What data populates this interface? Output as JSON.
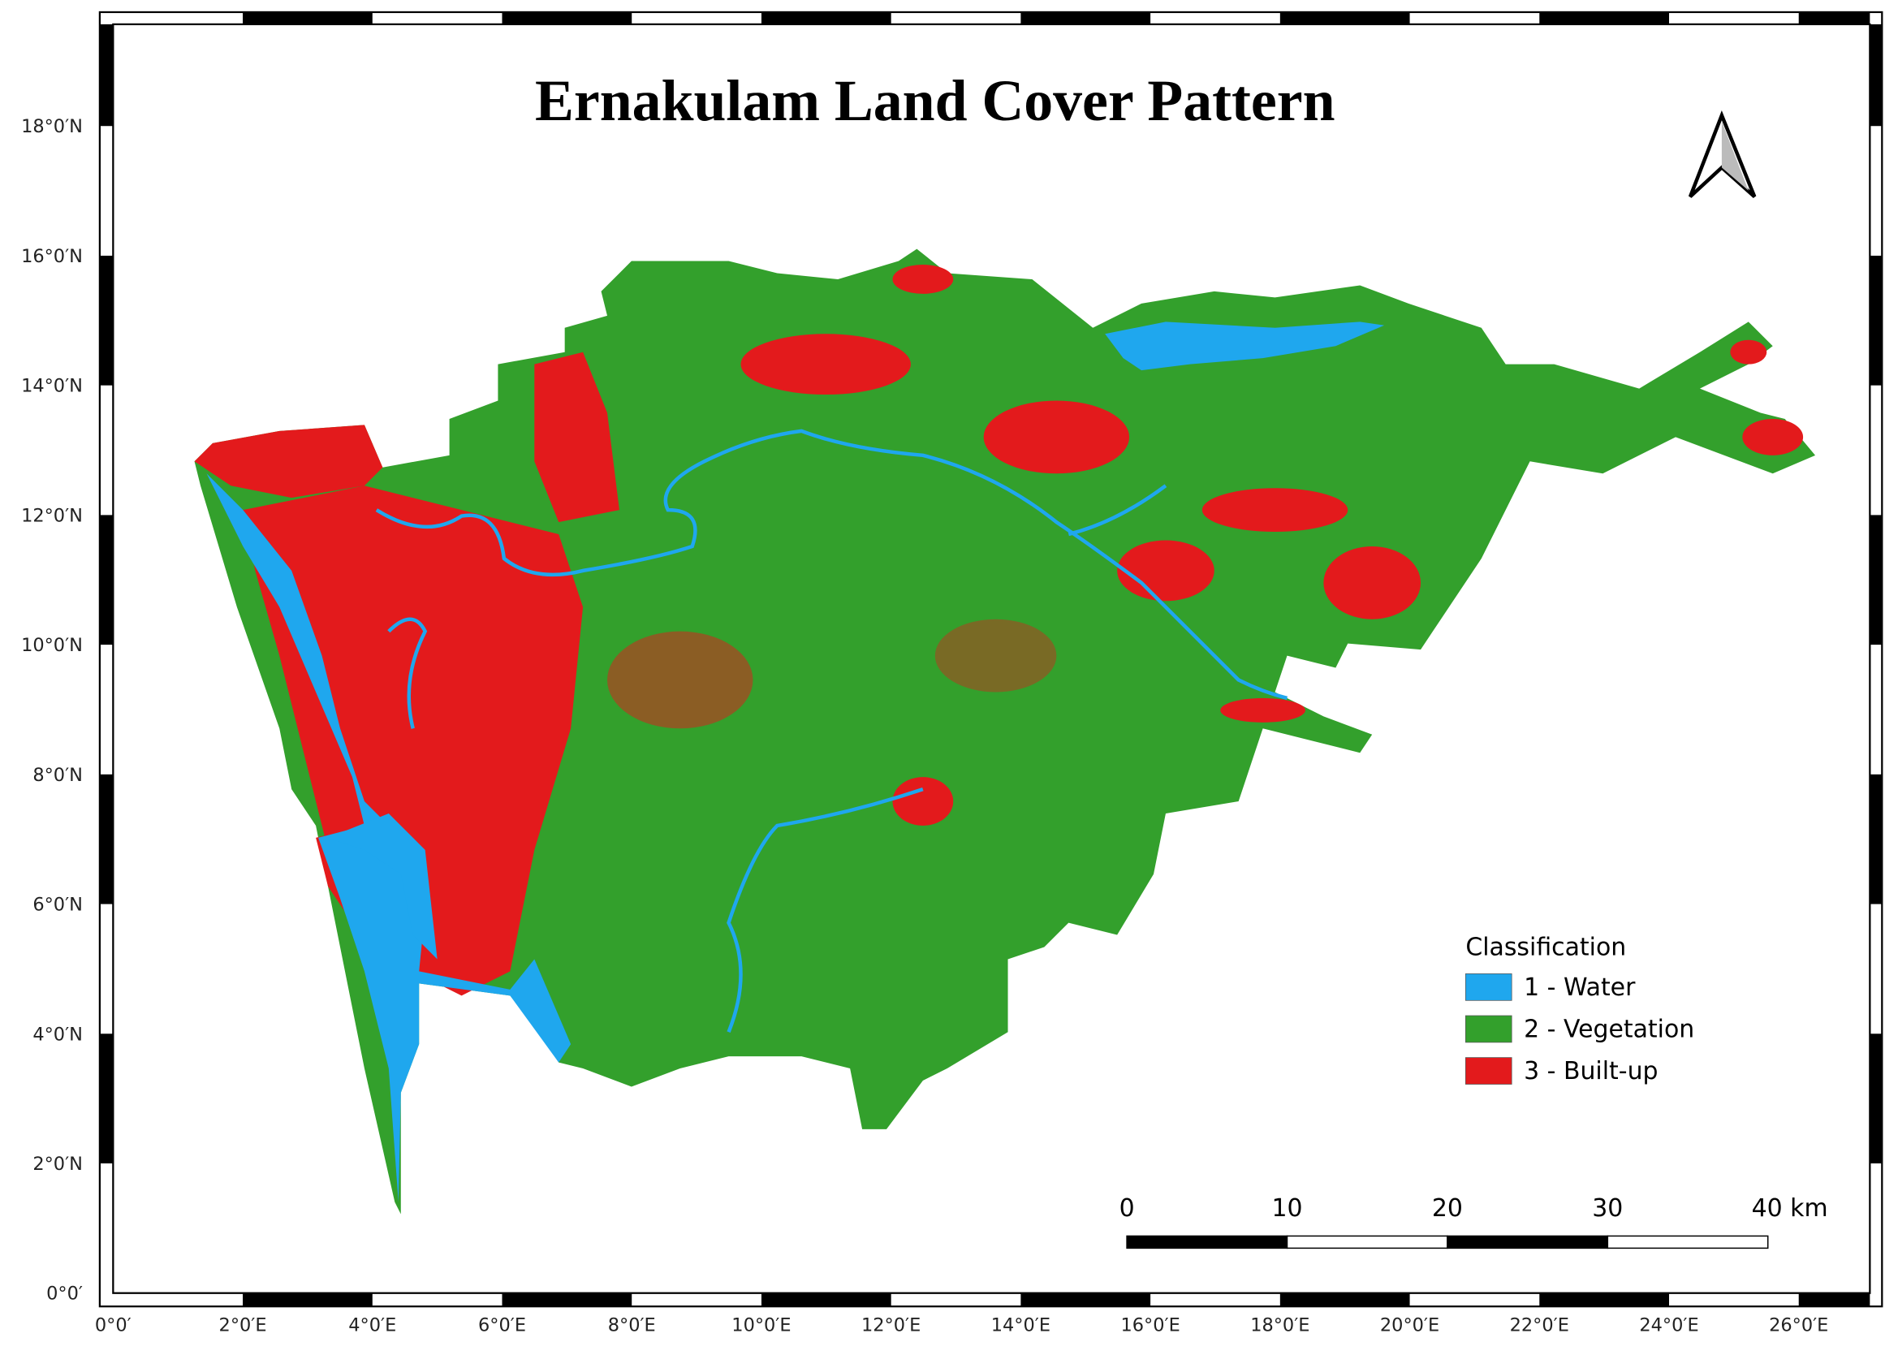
{
  "title": "Ernakulam Land Cover Pattern",
  "latitude_labels": [
    "0°0′",
    "2°0′N",
    "4°0′N",
    "6°0′N",
    "8°0′N",
    "10°0′N",
    "12°0′N",
    "14°0′N",
    "16°0′N",
    "18°0′N"
  ],
  "longitude_labels": [
    "0°0′",
    "2°0′E",
    "4°0′E",
    "6°0′E",
    "8°0′E",
    "10°0′E",
    "12°0′E",
    "14°0′E",
    "16°0′E",
    "18°0′E",
    "20°0′E",
    "22°0′E",
    "24°0′E",
    "26°0′E"
  ],
  "legend": {
    "title": "Classification",
    "items": [
      {
        "label": "1 - Water",
        "color": "#1fa7ee"
      },
      {
        "label": "2 - Vegetation",
        "color": "#33a02c"
      },
      {
        "label": "3 - Built-up",
        "color": "#e31a1c"
      }
    ]
  },
  "scale_bar": {
    "labels": [
      "0",
      "10",
      "20",
      "30",
      "40 km"
    ]
  }
}
